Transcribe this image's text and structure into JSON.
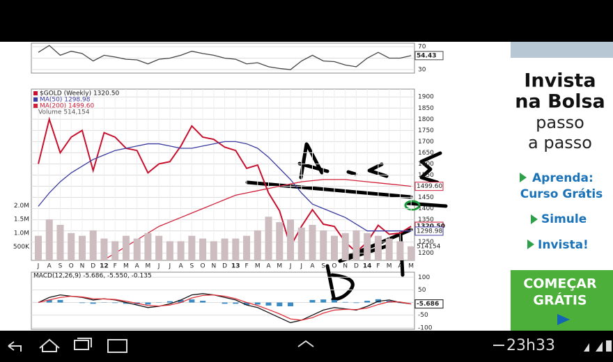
{
  "chart_data": [
    {
      "type": "line",
      "ylim": [
        24,
        76
      ],
      "yticks": [
        70,
        50,
        30
      ],
      "grid": true,
      "series": [
        {
          "color": "#444444",
          "values": [
            60,
            72,
            55,
            62,
            58,
            45,
            55,
            52,
            48,
            47,
            40,
            48,
            50,
            55,
            62,
            58,
            55,
            50,
            48,
            40,
            42,
            35,
            32,
            30,
            45,
            55,
            45,
            44,
            38,
            35,
            50,
            60,
            50,
            50,
            54.43
          ]
        }
      ]
    },
    {
      "type": "line",
      "ylim": [
        1168,
        1935
      ],
      "yticks": [
        1200,
        1250,
        1300,
        1350,
        1400,
        1450,
        1500,
        1550,
        1600,
        1650,
        1700,
        1750,
        1800,
        1850,
        1900
      ],
      "grid": true,
      "categories": [
        "J",
        "A",
        "S",
        "O",
        "N",
        "D",
        "12",
        "F",
        "M",
        "A",
        "M",
        "J",
        "J",
        "A",
        "S",
        "O",
        "N",
        "D",
        "13",
        "F",
        "M",
        "A",
        "M",
        "J",
        "J",
        "A",
        "S",
        "O",
        "N",
        "D",
        "14",
        "F",
        "M",
        "A",
        "M"
      ],
      "series": [
        {
          "name": "$GOLD (Weekly) 1320.50",
          "color": "#c8102e",
          "values": [
            1600,
            1800,
            1650,
            1720,
            1750,
            1570,
            1740,
            1720,
            1670,
            1660,
            1560,
            1600,
            1610,
            1680,
            1770,
            1720,
            1710,
            1675,
            1660,
            1580,
            1595,
            1470,
            1390,
            1230,
            1320,
            1395,
            1330,
            1320,
            1250,
            1205,
            1250,
            1325,
            1285,
            1290,
            1320.5
          ],
          "value_labels": [
            null,
            null,
            null,
            null,
            null,
            null,
            null,
            null,
            null,
            null,
            null,
            null,
            null,
            null,
            null,
            null,
            null,
            null,
            null,
            null,
            null,
            null,
            null,
            null,
            null,
            null,
            null,
            null,
            null,
            null,
            null,
            null,
            null,
            null,
            "1320.50"
          ]
        },
        {
          "name": "MA(50) 1298.98",
          "color": "#3a3aa0",
          "values": [
            1410,
            1470,
            1520,
            1560,
            1590,
            1620,
            1640,
            1660,
            1670,
            1680,
            1690,
            1690,
            1680,
            1670,
            1670,
            1680,
            1690,
            1700,
            1700,
            1690,
            1670,
            1630,
            1580,
            1530,
            1470,
            1420,
            1400,
            1380,
            1360,
            1330,
            1300,
            1300,
            1300,
            1300,
            1298.98
          ]
        },
        {
          "name": "MA(200) 1499.60",
          "color": "#d0203a",
          "values": [
            null,
            null,
            null,
            null,
            null,
            null,
            1170,
            1200,
            1230,
            1260,
            1290,
            1320,
            1340,
            1360,
            1380,
            1400,
            1420,
            1440,
            1460,
            1470,
            1480,
            1490,
            1500,
            1510,
            1520,
            1525,
            1530,
            1530,
            1530,
            1525,
            1520,
            1515,
            1510,
            1505,
            1499.6
          ],
          "value_labels": [
            null,
            null,
            null,
            null,
            null,
            null,
            null,
            null,
            null,
            null,
            null,
            null,
            null,
            null,
            null,
            null,
            null,
            null,
            null,
            null,
            null,
            null,
            null,
            null,
            null,
            null,
            null,
            null,
            null,
            null,
            null,
            null,
            null,
            null,
            "1499.60"
          ]
        }
      ]
    },
    {
      "type": "bar",
      "title": "Volume 514,154",
      "ylim": [
        0,
        2500000
      ],
      "color": "#cdbcc0",
      "yticks": [
        {
          "value": 500000,
          "label": "500K"
        },
        {
          "value": 1000000,
          "label": "1.0M"
        },
        {
          "value": 1500000,
          "label": "1.5M"
        },
        {
          "value": 2000000,
          "label": "2.0M"
        }
      ],
      "values": [
        900000,
        1500000,
        1300000,
        1000000,
        900000,
        1100000,
        800000,
        700000,
        900000,
        800000,
        1000000,
        900000,
        700000,
        700000,
        900000,
        800000,
        700000,
        800000,
        800000,
        900000,
        1100000,
        1600000,
        1400000,
        1500000,
        1200000,
        1300000,
        1100000,
        900000,
        1000000,
        1100000,
        1000000,
        900000,
        800000,
        700000,
        514154
      ]
    },
    {
      "type": "line",
      "title": "MACD(12,26,9) -5.686, -5.550, -0.135",
      "ylim": [
        -106,
        120
      ],
      "yticks": [
        100,
        50,
        0,
        -50,
        -100
      ],
      "grid": true,
      "series": [
        {
          "color": "#111111",
          "values": [
            0,
            20,
            30,
            25,
            20,
            10,
            15,
            10,
            0,
            -10,
            -20,
            -15,
            -5,
            10,
            30,
            35,
            30,
            20,
            10,
            -10,
            -20,
            -40,
            -60,
            -80,
            -70,
            -50,
            -30,
            -20,
            -25,
            -30,
            -15,
            5,
            10,
            0,
            -5.686
          ]
        },
        {
          "color": "#e0303a",
          "values": [
            0,
            10,
            20,
            25,
            22,
            15,
            14,
            12,
            5,
            -3,
            -12,
            -14,
            -10,
            0,
            18,
            28,
            30,
            25,
            15,
            0,
            -12,
            -28,
            -45,
            -65,
            -70,
            -60,
            -42,
            -30,
            -27,
            -28,
            -22,
            -8,
            3,
            2,
            -5.55
          ]
        }
      ],
      "histogram": {
        "color": "#3a8ac4",
        "values": [
          0,
          10,
          10,
          0,
          -2,
          -5,
          1,
          -2,
          -5,
          -7,
          -8,
          -1,
          5,
          10,
          12,
          7,
          0,
          -5,
          -5,
          -10,
          -8,
          -12,
          -15,
          -15,
          0,
          10,
          12,
          10,
          2,
          -2,
          7,
          13,
          7,
          -2,
          -0.135
        ]
      }
    }
  ],
  "ad": {
    "headline": [
      "Invista",
      "na Bolsa"
    ],
    "subline": [
      "passo",
      "a passo"
    ],
    "links": [
      "Aprenda:",
      "Curso Grátis",
      "Simule",
      "Invista!"
    ],
    "button": [
      "COMEÇAR",
      "GRÁTIS"
    ]
  },
  "status_bar": {
    "time": "23h33"
  }
}
